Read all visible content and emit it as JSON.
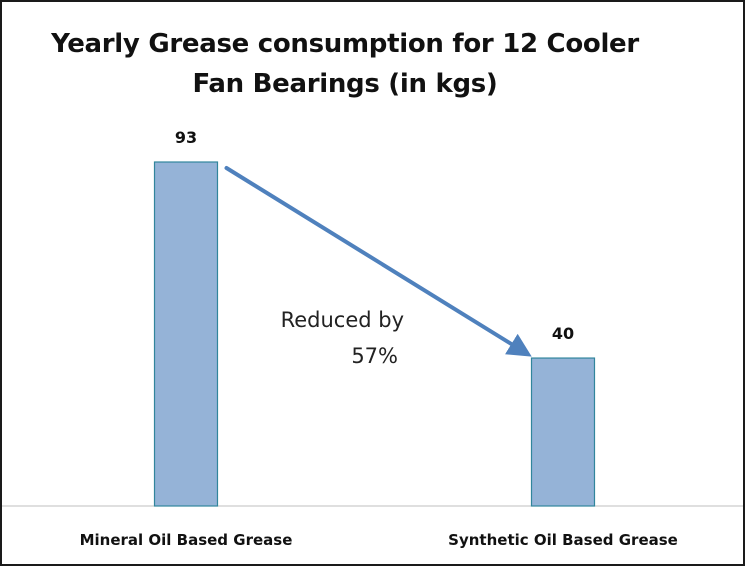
{
  "chart_data": {
    "type": "bar",
    "title": "Yearly Grease consumption for 12 Cooler Fan Bearings (in kgs)",
    "title_lines": [
      "Yearly Grease consumption for 12 Cooler",
      "Fan Bearings (in kgs)"
    ],
    "categories": [
      "Mineral Oil Based Grease",
      "Synthetic Oil Based Grease"
    ],
    "values": [
      93,
      40
    ],
    "data_labels": [
      "93",
      "40"
    ],
    "ylim": [
      0,
      100
    ],
    "grid": false,
    "legend": "none",
    "annotation": {
      "text": "Reduced by 57%",
      "lines": [
        "Reduced by",
        "57%"
      ],
      "arrow": "from-first-bar-to-second-bar"
    },
    "colors": {
      "bar_fill": "#95b3d7",
      "bar_stroke": "#31859c",
      "arrow": "#4f81bd",
      "axis": "#bfbfbf"
    }
  }
}
